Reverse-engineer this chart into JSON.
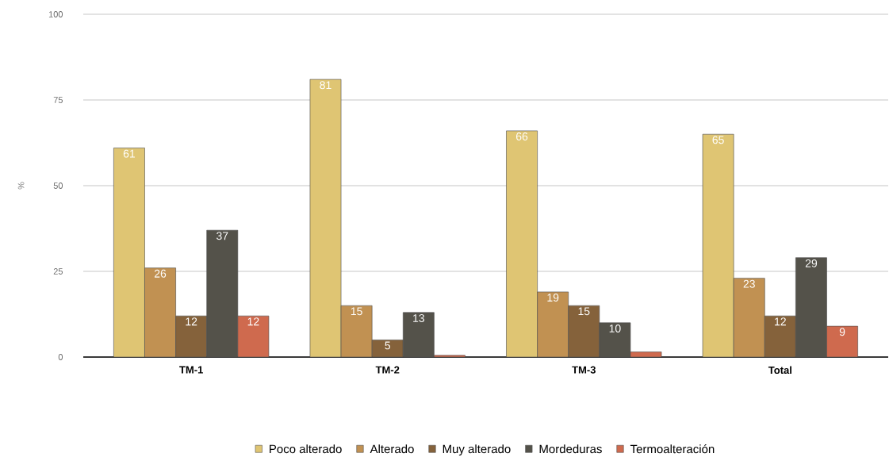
{
  "chart_data": {
    "type": "bar",
    "ylabel": "%",
    "categories": [
      "TM-1",
      "TM-2",
      "TM-3",
      "Total"
    ],
    "series": [
      {
        "name": "Poco alterado",
        "color": "#dfc573",
        "values": [
          61,
          81,
          66,
          65
        ],
        "value_labels": [
          "61",
          "81",
          "66",
          "65"
        ]
      },
      {
        "name": "Alterado",
        "color": "#c19152",
        "values": [
          26,
          15,
          19,
          23
        ],
        "value_labels": [
          "26",
          "15",
          "19",
          "23"
        ]
      },
      {
        "name": "Muy alterado",
        "color": "#85623b",
        "values": [
          12,
          5,
          15,
          12
        ],
        "value_labels": [
          "12",
          "5",
          "15",
          "12"
        ]
      },
      {
        "name": "Mordeduras",
        "color": "#54524a",
        "values": [
          37,
          13,
          10,
          29
        ],
        "value_labels": [
          "37",
          "13",
          "10",
          "29"
        ]
      },
      {
        "name": "Termoalteración",
        "color": "#cf6a4e",
        "values": [
          12,
          0.5,
          1.5,
          9
        ],
        "value_labels": [
          "12",
          null,
          null,
          "9"
        ]
      }
    ],
    "ylim": [
      0,
      100
    ],
    "yticks": [
      0,
      25,
      50,
      75,
      100
    ],
    "grid": "y",
    "legend": "bottom"
  }
}
